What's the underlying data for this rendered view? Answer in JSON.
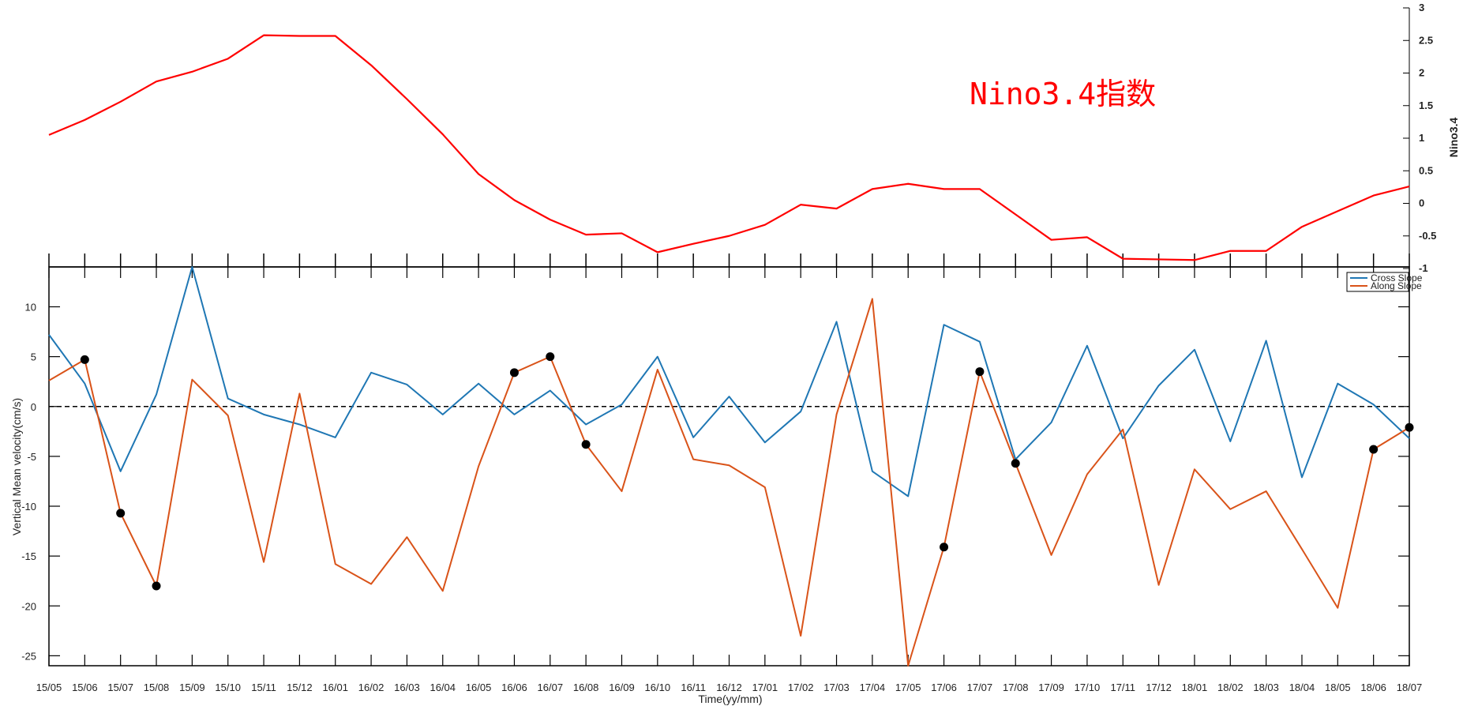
{
  "chart_data": [
    {
      "type": "line",
      "ylabel": "Nino3.4",
      "ylim": [
        -1,
        3
      ],
      "yticks": [
        -1,
        -0.5,
        0,
        0.5,
        1,
        1.5,
        2,
        2.5,
        3
      ],
      "ytick_labels": [
        "-1",
        "-0.5",
        "0",
        "0.5",
        "1",
        "1.5",
        "2",
        "2.5",
        "3"
      ],
      "yaxis_side": "right",
      "annotation": "Nino3.4指数",
      "color": "#ff0000",
      "series": [
        {
          "values": [
            1.05,
            1.28,
            1.56,
            1.87,
            2.02,
            2.22,
            2.58,
            2.57,
            2.57,
            2.12,
            1.6,
            1.06,
            0.45,
            0.05,
            -0.25,
            -0.48,
            -0.46,
            -0.75,
            -0.62,
            -0.5,
            -0.33,
            -0.02,
            -0.08,
            0.22,
            0.3,
            0.22,
            0.22,
            -0.17,
            -0.56,
            -0.52,
            -0.85,
            -0.86,
            -0.87,
            -0.73,
            -0.73,
            -0.36,
            -0.12,
            0.12,
            0.26
          ]
        }
      ]
    },
    {
      "type": "line",
      "xlabel": "Time(yy/mm)",
      "ylabel": "Vertical Mean velocity(cm/s)",
      "ylim": [
        -26,
        14
      ],
      "yticks": [
        -25,
        -20,
        -15,
        -10,
        -5,
        0,
        5,
        10
      ],
      "ytick_labels": [
        "-25",
        "-20",
        "-15",
        "-10",
        "-5",
        "0",
        "5",
        "10"
      ],
      "categories": [
        "15/05",
        "15/06",
        "15/07",
        "15/08",
        "15/09",
        "15/10",
        "15/11",
        "15/12",
        "16/01",
        "16/02",
        "16/03",
        "16/04",
        "16/05",
        "16/06",
        "16/07",
        "16/08",
        "16/09",
        "16/10",
        "16/11",
        "16/12",
        "17/01",
        "17/02",
        "17/03",
        "17/04",
        "17/05",
        "17/06",
        "17/07",
        "17/08",
        "17/09",
        "17/10",
        "17/11",
        "17/12",
        "18/01",
        "18/02",
        "18/03",
        "18/04",
        "18/05",
        "18/06",
        "18/07"
      ],
      "zero_line": {
        "value": 0,
        "style": "dashed"
      },
      "legend_position": "top-right",
      "series": [
        {
          "name": "Cross Slope",
          "color": "#1f77b4",
          "values": [
            7.2,
            2.3,
            -6.5,
            1.2,
            14.0,
            0.8,
            -0.8,
            -1.8,
            -3.1,
            3.4,
            2.2,
            -0.8,
            2.3,
            -0.8,
            1.6,
            -1.8,
            0.2,
            5.0,
            -3.1,
            1.0,
            -3.6,
            -0.5,
            8.5,
            -6.5,
            -9.0,
            8.2,
            6.5,
            -5.3,
            -1.6,
            6.1,
            -3.2,
            2.1,
            5.7,
            -3.5,
            6.6,
            -7.1,
            2.3,
            0.2,
            -3.2
          ]
        },
        {
          "name": "Along Slope",
          "color": "#d95319",
          "values": [
            2.6,
            4.7,
            -10.7,
            -18.0,
            2.7,
            -0.9,
            -15.6,
            1.3,
            -15.8,
            -17.8,
            -13.1,
            -18.5,
            -6.0,
            3.4,
            5.0,
            -3.8,
            -8.5,
            3.7,
            -5.3,
            -5.9,
            -8.1,
            -23.0,
            -0.8,
            10.8,
            -26.0,
            -14.1,
            3.5,
            -5.7,
            -14.9,
            -6.8,
            -2.3,
            -17.9,
            -6.3,
            -10.3,
            -8.5,
            -14.3,
            -20.2,
            -4.3,
            -2.1
          ]
        }
      ],
      "markers": [
        {
          "x": "15/06",
          "y": 4.7
        },
        {
          "x": "15/07",
          "y": -10.7
        },
        {
          "x": "15/08",
          "y": -18.0
        },
        {
          "x": "16/06",
          "y": 3.4
        },
        {
          "x": "16/07",
          "y": 5.0
        },
        {
          "x": "16/08",
          "y": -3.8
        },
        {
          "x": "17/06",
          "y": -14.1
        },
        {
          "x": "17/07",
          "y": 3.5
        },
        {
          "x": "17/08",
          "y": -5.7
        },
        {
          "x": "18/06",
          "y": -4.3
        },
        {
          "x": "18/07",
          "y": -2.1
        }
      ]
    }
  ]
}
